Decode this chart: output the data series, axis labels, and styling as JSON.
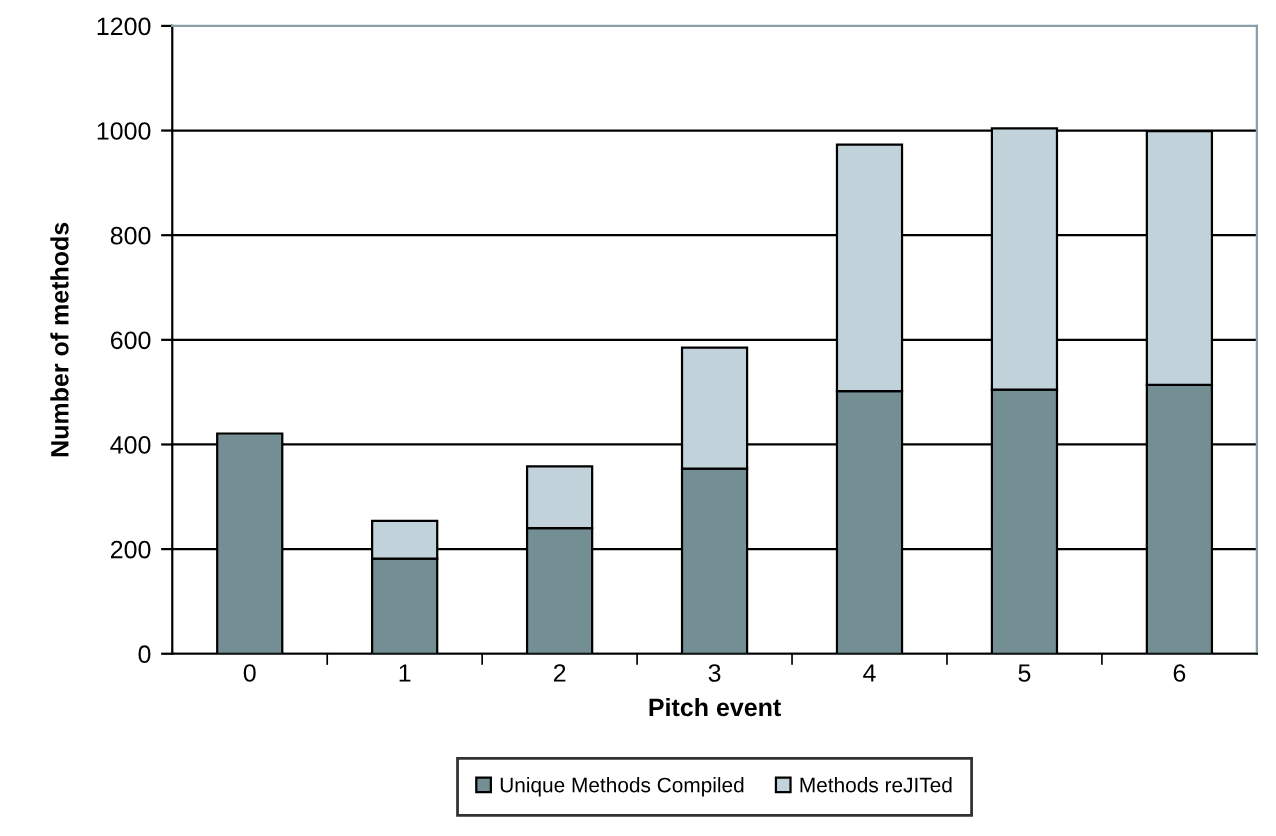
{
  "chart_data": {
    "type": "bar",
    "stacked": true,
    "xlabel": "Pitch event",
    "ylabel": "Number of methods",
    "categories": [
      "0",
      "1",
      "2",
      "3",
      "4",
      "5",
      "6"
    ],
    "series": [
      {
        "name": "Unique Methods Compiled",
        "color": "#738f94",
        "values": [
          421,
          182,
          240,
          354,
          502,
          505,
          514
        ]
      },
      {
        "name": "Methods reJITed",
        "color": "#c2d2da",
        "values": [
          null,
          72,
          118,
          231,
          471,
          499,
          485
        ]
      }
    ],
    "ylim": [
      0,
      1200
    ],
    "yticks": [
      0,
      200,
      400,
      600,
      800,
      1000,
      1200
    ],
    "grid": "y",
    "legend": "bottom"
  }
}
